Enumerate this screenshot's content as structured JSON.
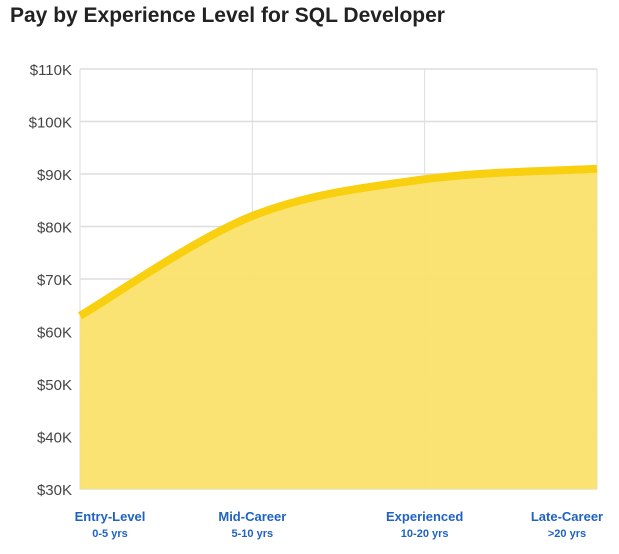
{
  "chart_data": {
    "type": "area",
    "title": "Pay by Experience Level for SQL Developer",
    "categories": [
      {
        "label": "Entry-Level",
        "sub": "0-5 yrs"
      },
      {
        "label": "Mid-Career",
        "sub": "5-10 yrs"
      },
      {
        "label": "Experienced",
        "sub": "10-20 yrs"
      },
      {
        "label": "Late-Career",
        "sub": ">20 yrs"
      }
    ],
    "values": [
      63000,
      82000,
      89000,
      91000
    ],
    "ylim": [
      30000,
      110000
    ],
    "yticks": [
      "$30K",
      "$40K",
      "$50K",
      "$60K",
      "$70K",
      "$80K",
      "$90K",
      "$100K",
      "$110K"
    ],
    "grid": true,
    "colors": {
      "line": "#f9d00f",
      "fill": "#fae16b",
      "grid": "#dddddd",
      "labels": "#1f62c4"
    }
  }
}
